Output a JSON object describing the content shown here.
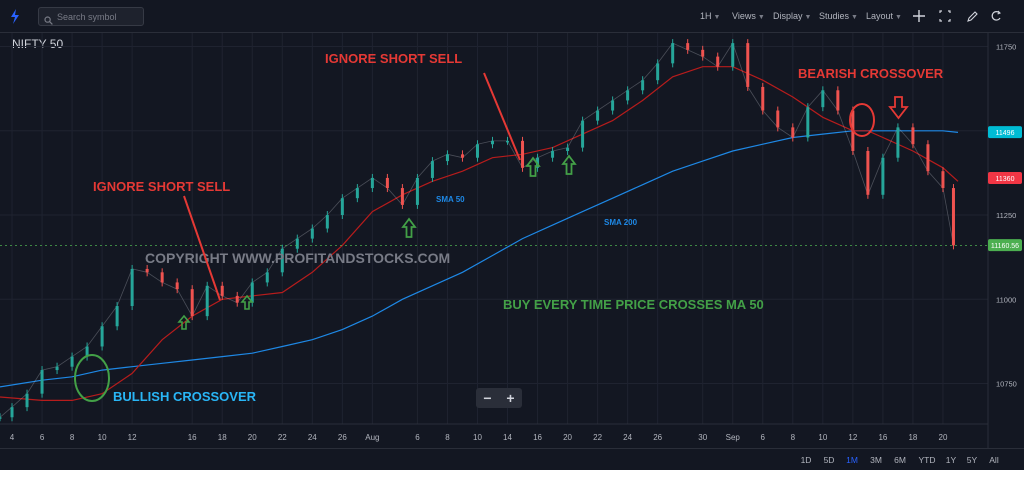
{
  "toolbar": {
    "search_placeholder": "Search symbol",
    "interval": "1H",
    "views": "Views",
    "display": "Display",
    "studies": "Studies",
    "layout": "Layout",
    "icons": [
      "lightning-icon",
      "search-icon",
      "plus-icon",
      "fullscreen-icon",
      "pencil-icon",
      "reload-icon"
    ]
  },
  "symbol": "NIFTY 50",
  "zoom": {
    "minus": "−",
    "plus": "+"
  },
  "timeframes": [
    "1D",
    "5D",
    "1M",
    "3M",
    "6M",
    "YTD",
    "1Y",
    "5Y",
    "All"
  ],
  "active_timeframe": "1M",
  "colors": {
    "background": "#131722",
    "bull": "#26a69a",
    "bear": "#ef5350",
    "sma50": "#b71c1c",
    "sma200": "#1e88e5",
    "annotation_red": "#e53935",
    "annotation_green": "#43a047",
    "annotation_blue": "#29b6f6"
  },
  "annotations": {
    "ignore_1": "IGNORE SHORT SELL",
    "ignore_2": "IGNORE SHORT SELL",
    "bearish": "BEARISH CROSSOVER",
    "bullish": "BULLISH CROSSOVER",
    "buy_rule": "BUY EVERY TIME PRICE CROSSES MA 50",
    "sma50_label": "SMA 50",
    "sma200_label": "SMA 200",
    "watermark": "COPYRIGHT WWW.PROFITANDSTOCKS.COM"
  },
  "chart_data": {
    "type": "line",
    "title": "NIFTY 50",
    "xlabel": "",
    "ylabel": "",
    "ylim": [
      10630,
      11790
    ],
    "y_ticks": [
      11750,
      11500,
      11250,
      11000,
      10750
    ],
    "x_ticks": [
      "4",
      "6",
      "8",
      "10",
      "12",
      "16",
      "18",
      "20",
      "22",
      "24",
      "26",
      "Aug",
      "6",
      "8",
      "10",
      "14",
      "16",
      "20",
      "22",
      "24",
      "26",
      "30",
      "Sep",
      "6",
      "8",
      "10",
      "12",
      "16",
      "18",
      "20"
    ],
    "x_tick_pos": [
      4,
      6,
      8,
      10,
      12,
      16,
      18,
      20,
      22,
      24,
      26,
      28,
      31,
      33,
      35,
      37,
      39,
      41,
      43,
      45,
      47,
      50,
      52,
      54,
      56,
      58,
      60,
      62,
      64,
      66
    ],
    "x_range": [
      3.2,
      69
    ],
    "series": [
      {
        "name": "NIFTY 50",
        "x": [
          3.2,
          4,
          5,
          6,
          7,
          8,
          9,
          10,
          11,
          12,
          13,
          14,
          15,
          16,
          17,
          18,
          19,
          20,
          21,
          22,
          23,
          24,
          25,
          26,
          27,
          28,
          29,
          30,
          31,
          32,
          33,
          34,
          35,
          36,
          37,
          38,
          39,
          40,
          41,
          42,
          43,
          44,
          45,
          46,
          47,
          48,
          49,
          50,
          51,
          52,
          53,
          54,
          55,
          56,
          57,
          58,
          59,
          60,
          61,
          62,
          63,
          64,
          65,
          66,
          66.7
        ],
        "values": [
          10650,
          10680,
          10720,
          10790,
          10800,
          10830,
          10860,
          10920,
          10980,
          11090,
          11080,
          11050,
          11030,
          10950,
          11040,
          11010,
          10990,
          11050,
          11080,
          11150,
          11180,
          11210,
          11250,
          11300,
          11330,
          11360,
          11330,
          11280,
          11360,
          11410,
          11430,
          11420,
          11460,
          11470,
          11470,
          11390,
          11420,
          11440,
          11450,
          11530,
          11560,
          11590,
          11620,
          11650,
          11700,
          11760,
          11740,
          11720,
          11690,
          11760,
          11630,
          11560,
          11510,
          11480,
          11570,
          11620,
          11560,
          11440,
          11310,
          11420,
          11510,
          11460,
          11380,
          11330,
          11160
        ]
      },
      {
        "name": "SMA 50",
        "x": [
          3.2,
          6,
          8,
          10,
          12,
          14,
          16,
          18,
          20,
          22,
          24,
          26,
          28,
          30,
          32,
          34,
          36,
          38,
          40,
          42,
          44,
          46,
          48,
          50,
          52,
          54,
          56,
          58,
          60,
          61,
          62,
          64,
          66,
          67
        ],
        "values": [
          10710,
          10700,
          10700,
          10720,
          10780,
          10880,
          10950,
          11000,
          11010,
          11020,
          11080,
          11160,
          11260,
          11310,
          11350,
          11380,
          11420,
          11430,
          11450,
          11490,
          11530,
          11590,
          11660,
          11690,
          11690,
          11650,
          11600,
          11540,
          11500,
          11500,
          11480,
          11440,
          11390,
          11350
        ]
      },
      {
        "name": "SMA 200",
        "x": [
          3.2,
          6,
          8,
          10,
          12,
          14,
          16,
          18,
          20,
          22,
          24,
          26,
          28,
          30,
          32,
          34,
          36,
          38,
          40,
          42,
          44,
          46,
          48,
          50,
          52,
          54,
          56,
          58,
          60,
          62,
          64,
          66,
          67
        ],
        "values": [
          10740,
          10760,
          10770,
          10790,
          10800,
          10810,
          10820,
          10830,
          10840,
          10860,
          10880,
          10910,
          10950,
          11000,
          11040,
          11080,
          11130,
          11180,
          11220,
          11260,
          11300,
          11340,
          11380,
          11410,
          11440,
          11460,
          11480,
          11490,
          11500,
          11500,
          11500,
          11500,
          11495
        ]
      }
    ],
    "price_labels": [
      {
        "value": 11496,
        "text": "11496",
        "color": "#00bcd4"
      },
      {
        "value": 11360,
        "text": "11360",
        "color": "#f23645"
      },
      {
        "value": 11160.56,
        "text": "11160.56",
        "color": "#4caf50"
      }
    ],
    "legend": "none",
    "grid": true
  }
}
